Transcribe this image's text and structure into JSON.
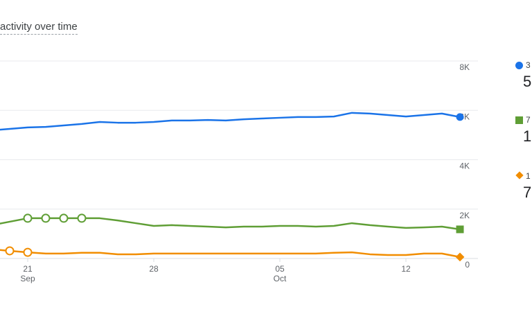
{
  "header": {
    "title": "activity over time"
  },
  "legend": [
    {
      "label": "3",
      "value": "5",
      "color": "#1a73e8",
      "marker": "circle"
    },
    {
      "label": "7",
      "value": "1.",
      "color": "#5f9e35",
      "marker": "square"
    },
    {
      "label": "1",
      "value": "7",
      "color": "#f18d00",
      "marker": "diamond"
    }
  ],
  "chart_data": {
    "type": "line",
    "title": "activity over time",
    "x": [
      "Sep 20",
      "Sep 21",
      "Sep 22",
      "Sep 23",
      "Sep 24",
      "Sep 25",
      "Sep 26",
      "Sep 27",
      "Sep 28",
      "Sep 29",
      "Sep 30",
      "Oct 1",
      "Oct 2",
      "Oct 3",
      "Oct 4",
      "Oct 5",
      "Oct 6",
      "Oct 7",
      "Oct 8",
      "Oct 9",
      "Oct 10",
      "Oct 11",
      "Oct 12",
      "Oct 13",
      "Oct 14",
      "Oct 15"
    ],
    "x_ticks": [
      {
        "label": "21",
        "sub": "Sep",
        "at": "Sep 21"
      },
      {
        "label": "28",
        "sub": "",
        "at": "Sep 28"
      },
      {
        "label": "05",
        "sub": "Oct",
        "at": "Oct 5"
      },
      {
        "label": "12",
        "sub": "",
        "at": "Oct 12"
      }
    ],
    "y_ticks": [
      "0",
      "2K",
      "4K",
      "6K",
      "8K"
    ],
    "ylim": [
      0,
      8000
    ],
    "y_axis": "right",
    "grid": true,
    "series": [
      {
        "color": "#1a73e8",
        "values": [
          5250,
          5310,
          5330,
          5390,
          5450,
          5530,
          5500,
          5500,
          5530,
          5590,
          5590,
          5610,
          5590,
          5640,
          5670,
          5700,
          5730,
          5730,
          5750,
          5900,
          5870,
          5810,
          5750,
          5810,
          5870,
          5730
        ],
        "hollow_points": []
      },
      {
        "color": "#5f9e35",
        "values": [
          1490,
          1630,
          1630,
          1630,
          1630,
          1630,
          1540,
          1430,
          1320,
          1350,
          1320,
          1290,
          1260,
          1290,
          1290,
          1320,
          1320,
          1290,
          1320,
          1430,
          1350,
          1290,
          1240,
          1260,
          1290,
          1180
        ],
        "hollow_points": [
          "Sep 21",
          "Sep 22",
          "Sep 23",
          "Sep 24"
        ]
      },
      {
        "color": "#f18d00",
        "values": [
          310,
          250,
          200,
          200,
          230,
          230,
          170,
          170,
          200,
          200,
          200,
          200,
          200,
          200,
          200,
          200,
          200,
          200,
          230,
          250,
          170,
          140,
          140,
          200,
          200,
          60
        ],
        "hollow_points": [
          "Sep 20",
          "Sep 21"
        ]
      }
    ]
  }
}
